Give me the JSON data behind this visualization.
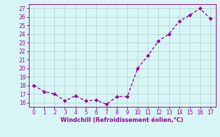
{
  "x": [
    0,
    1,
    2,
    3,
    4,
    5,
    6,
    7,
    8,
    9,
    10,
    11,
    12,
    13,
    14,
    15,
    16,
    17
  ],
  "y": [
    18.0,
    17.3,
    17.0,
    16.2,
    16.8,
    16.2,
    16.3,
    15.8,
    16.7,
    16.7,
    20.0,
    21.5,
    23.2,
    24.0,
    25.5,
    26.2,
    27.0,
    25.8
  ],
  "line_color": "#990099",
  "marker_color": "#990099",
  "bg_color": "#d8f5f5",
  "grid_color": "#b8dada",
  "xlabel": "Windchill (Refroidissement éolien,°C)",
  "xlabel_color": "#990099",
  "ylabel_ticks": [
    16,
    17,
    18,
    19,
    20,
    21,
    22,
    23,
    24,
    25,
    26,
    27
  ],
  "xticks": [
    0,
    1,
    2,
    3,
    4,
    5,
    6,
    7,
    8,
    9,
    10,
    11,
    12,
    13,
    14,
    15,
    16,
    17
  ],
  "ylim": [
    15.5,
    27.5
  ],
  "xlim": [
    -0.5,
    17.5
  ]
}
